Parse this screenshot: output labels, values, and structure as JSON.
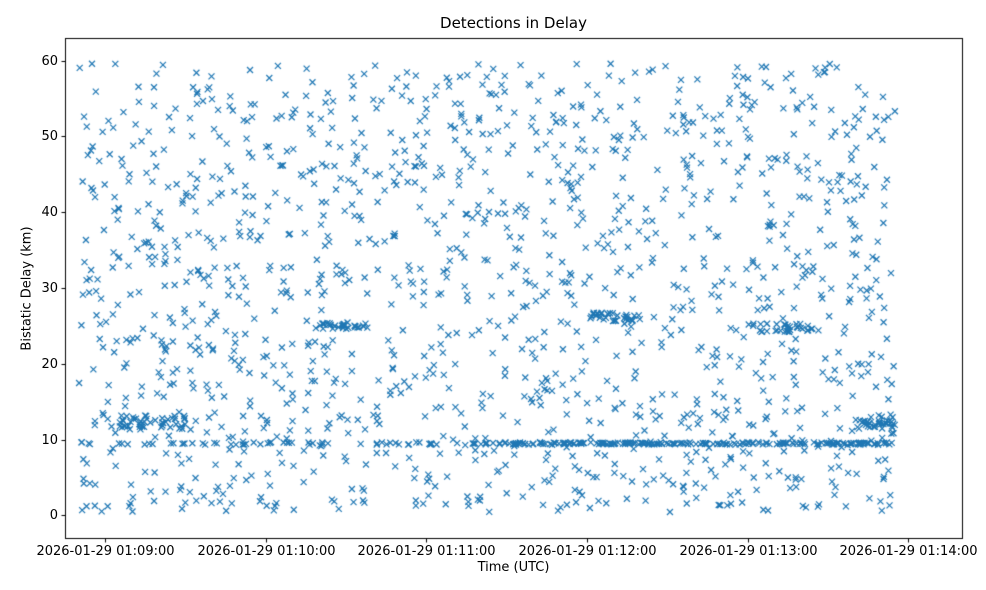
{
  "chart_data": {
    "type": "scatter",
    "title": "Detections in Delay",
    "xlabel": "Time (UTC)",
    "ylabel": "Bistatic Delay (km)",
    "grid": false,
    "legend": false,
    "marker": {
      "symbol": "x",
      "color": "#1f77b4",
      "half_size_px": 3,
      "line_width": 1.2
    },
    "x_axis": {
      "axis_start_label": "2026-01-29 01:08:45",
      "axis_end_label": "2026-01-29 01:14:20",
      "lim_sec": [
        0,
        335
      ],
      "ticks": [
        {
          "sec": 15,
          "label": "2026-01-29 01:09:00"
        },
        {
          "sec": 75,
          "label": "2026-01-29 01:10:00"
        },
        {
          "sec": 135,
          "label": "2026-01-29 01:11:00"
        },
        {
          "sec": 195,
          "label": "2026-01-29 01:12:00"
        },
        {
          "sec": 255,
          "label": "2026-01-29 01:13:00"
        },
        {
          "sec": 315,
          "label": "2026-01-29 01:14:00"
        }
      ]
    },
    "y_axis": {
      "lim": [
        -3,
        63
      ],
      "ticks": [
        0,
        10,
        20,
        30,
        40,
        50,
        60
      ]
    },
    "observed_features": [
      "Dense uniform cloud of x markers covering ~01:08:50 to ~01:13:55 UTC and ~0.5 to ~59.7 km bistatic delay",
      "Persistent dense horizontal band of detections at ~9.5 km across the whole interval, denser in the second half",
      "Small tight clusters near ~12 km shortly after 01:09:00 and again near the end ~01:13:50",
      "Short dense streaks near ~25-26.5 km around 01:10:00, 01:12:00 and 01:13:00"
    ],
    "points_approximation": {
      "note": "Individual detections are too numerous to enumerate; the cloud is reproduced with a seeded generator matching the observed density, ranges and dense bands.",
      "seed": 20260129,
      "total_points": 1895,
      "components": [
        {
          "kind": "uniform",
          "n": 1450,
          "t_sec": [
            5,
            310
          ],
          "y_km": [
            0.4,
            59.7
          ]
        },
        {
          "kind": "uniform",
          "n": 100,
          "t_sec": [
            5,
            310
          ],
          "y_km": [
            9.3,
            9.65
          ]
        },
        {
          "kind": "uniform",
          "n": 170,
          "t_sec": [
            150,
            310
          ],
          "y_km": [
            9.35,
            9.6
          ]
        },
        {
          "kind": "uniform",
          "n": 45,
          "t_sec": [
            20,
            45
          ],
          "y_km": [
            11.3,
            13.2
          ]
        },
        {
          "kind": "uniform",
          "n": 35,
          "t_sec": [
            295,
            310
          ],
          "y_km": [
            11.4,
            12.6
          ]
        },
        {
          "kind": "uniform",
          "n": 30,
          "t_sec": [
            95,
            115
          ],
          "y_km": [
            24.6,
            25.4
          ]
        },
        {
          "kind": "uniform",
          "n": 30,
          "t_sec": [
            195,
            215
          ],
          "y_km": [
            25.6,
            26.8
          ]
        },
        {
          "kind": "uniform",
          "n": 35,
          "t_sec": [
            255,
            280
          ],
          "y_km": [
            24.2,
            25.3
          ]
        }
      ]
    }
  }
}
